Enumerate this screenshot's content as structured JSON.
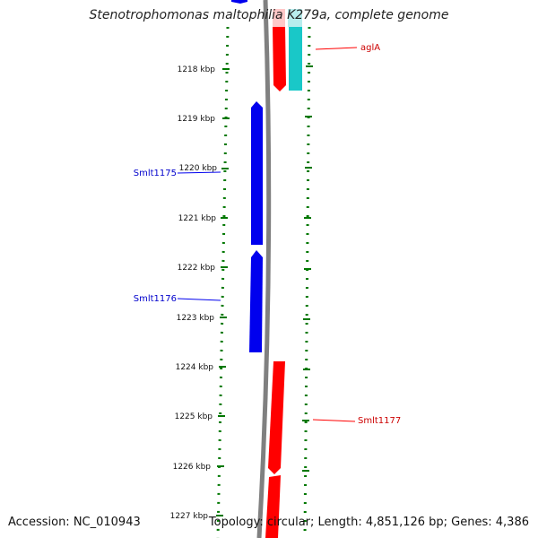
{
  "title": "Stenotrophomonas maltophilia K279a, complete genome",
  "footer": {
    "accession": "Accession: NC_010943",
    "topology": "Topology: circular; Length: 4,851,126 bp; Genes: 4,386"
  },
  "colors": {
    "forward": "#ff0000",
    "reverse": "#0000ee",
    "rna": "#19c8c8",
    "backbone": "#808080",
    "ticks": "#007700"
  },
  "ticks": [
    {
      "label": "1218 kbp"
    },
    {
      "label": "1219 kbp"
    },
    {
      "label": "1220 kbp"
    },
    {
      "label": "1221 kbp"
    },
    {
      "label": "1222 kbp"
    },
    {
      "label": "1223 kbp"
    },
    {
      "label": "1224 kbp"
    },
    {
      "label": "1225 kbp"
    },
    {
      "label": "1226 kbp"
    },
    {
      "label": "1227 kbp"
    }
  ],
  "gene_labels": [
    {
      "id": "aglA",
      "text": "aglA",
      "strand": "forward"
    },
    {
      "id": "Smlt1175",
      "text": "Smlt1175",
      "strand": "reverse"
    },
    {
      "id": "Smlt1176",
      "text": "Smlt1176",
      "strand": "reverse"
    },
    {
      "id": "Smlt1177",
      "text": "Smlt1177",
      "strand": "forward"
    }
  ]
}
